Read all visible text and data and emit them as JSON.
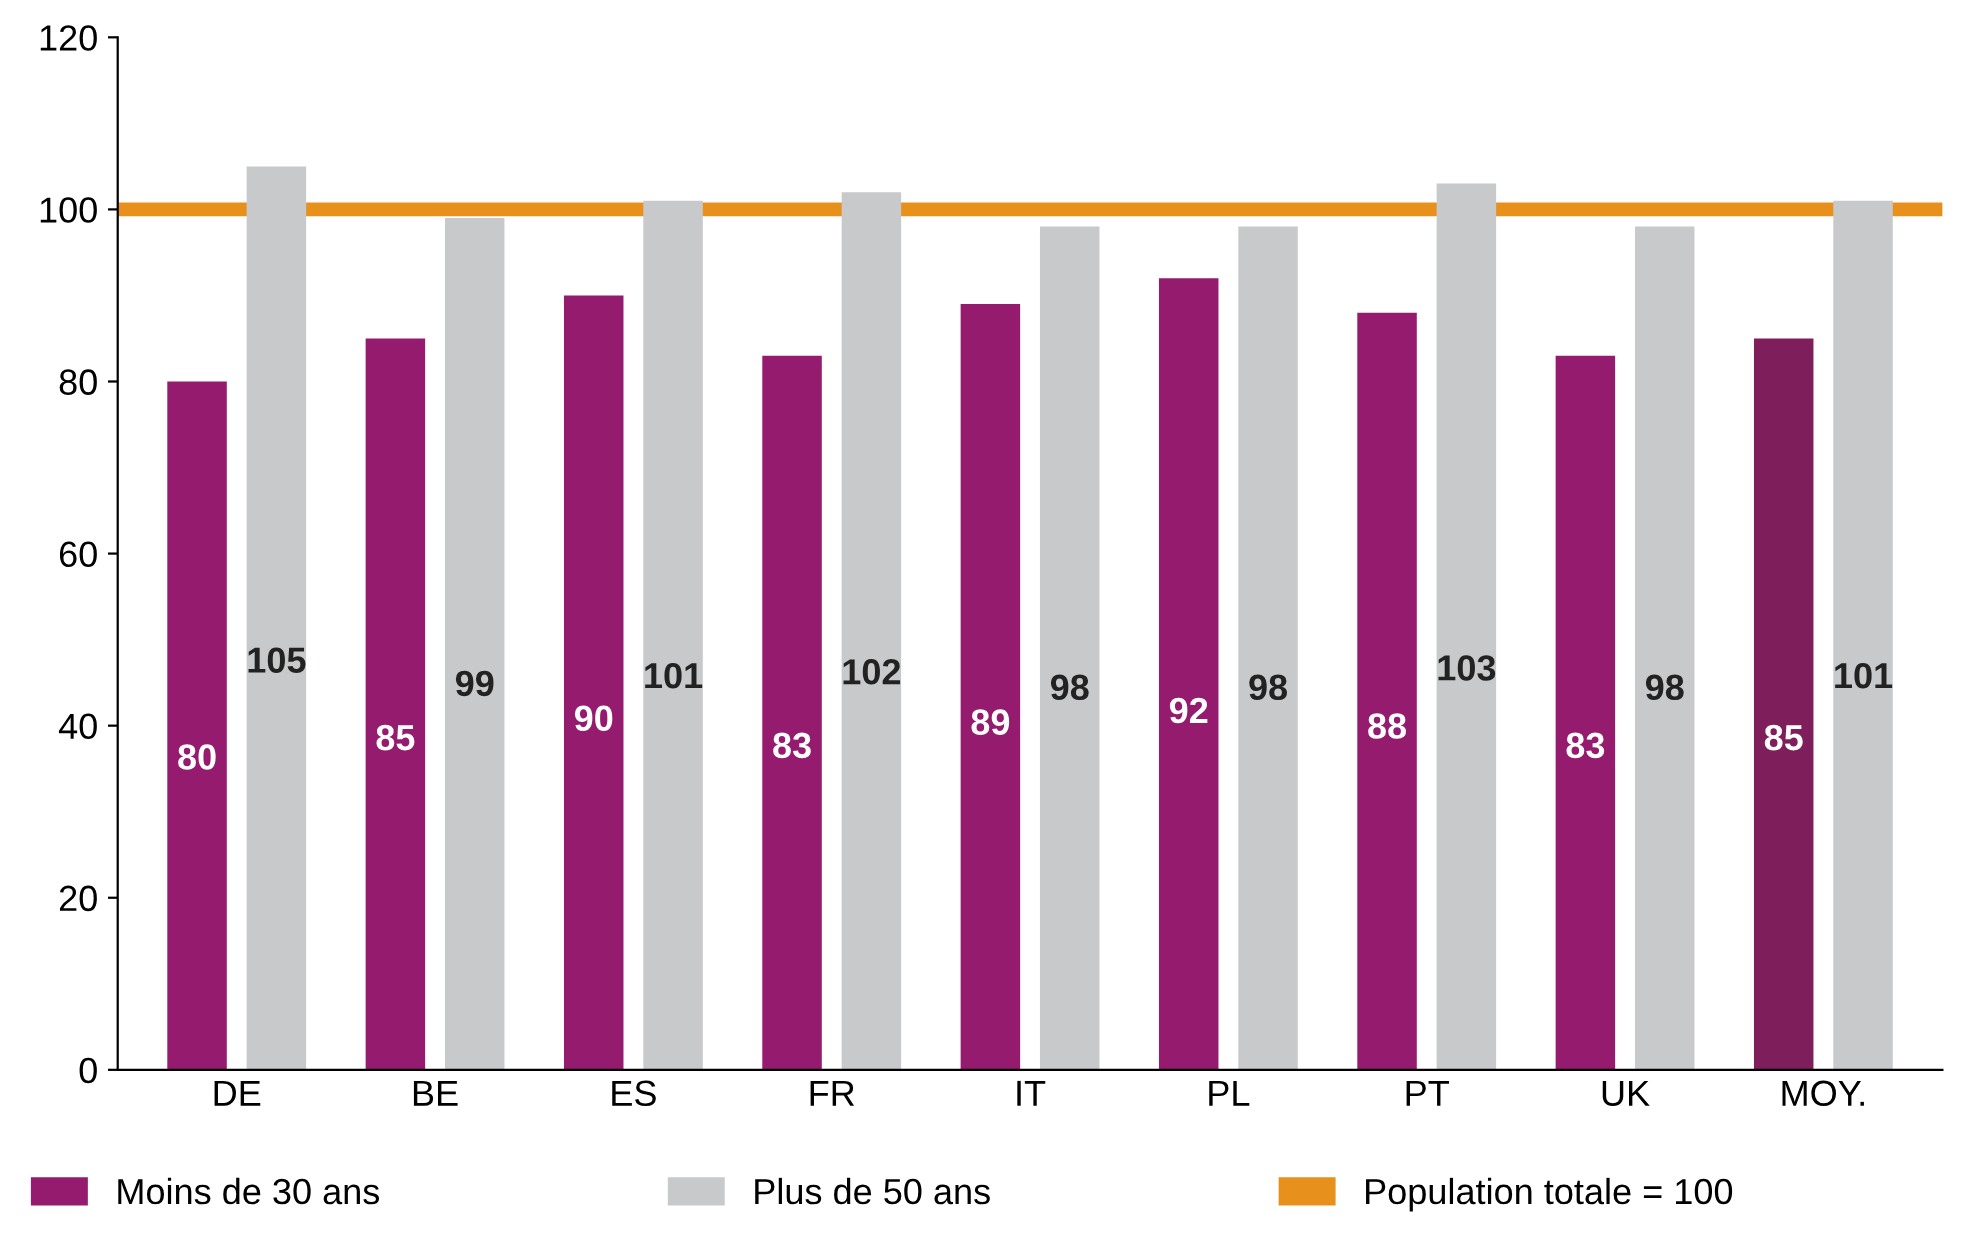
{
  "chart_data": {
    "type": "bar",
    "categories": [
      "DE",
      "BE",
      "ES",
      "FR",
      "IT",
      "PL",
      "PT",
      "UK",
      "MOY."
    ],
    "series": [
      {
        "name": "Moins de 30 ans",
        "color": "#951b6e",
        "colors": [
          "#951b6e",
          "#951b6e",
          "#951b6e",
          "#951b6e",
          "#951b6e",
          "#951b6e",
          "#951b6e",
          "#951b6e",
          "#7e1f5c"
        ],
        "values": [
          80,
          85,
          90,
          83,
          89,
          92,
          88,
          83,
          85
        ]
      },
      {
        "name": "Plus de 50 ans",
        "color": "#c8c9cb",
        "values": [
          105,
          99,
          101,
          102,
          98,
          98,
          103,
          98,
          101
        ]
      }
    ],
    "ref_lines": [
      {
        "axis": "y",
        "value": 100,
        "label": "Population totale = 100",
        "color": "#e8901c"
      }
    ],
    "ylim": [
      0,
      120
    ],
    "yticks": [
      0,
      20,
      40,
      60,
      80,
      100,
      120
    ],
    "data_labels": true,
    "grid": false,
    "legend": "bottom"
  }
}
